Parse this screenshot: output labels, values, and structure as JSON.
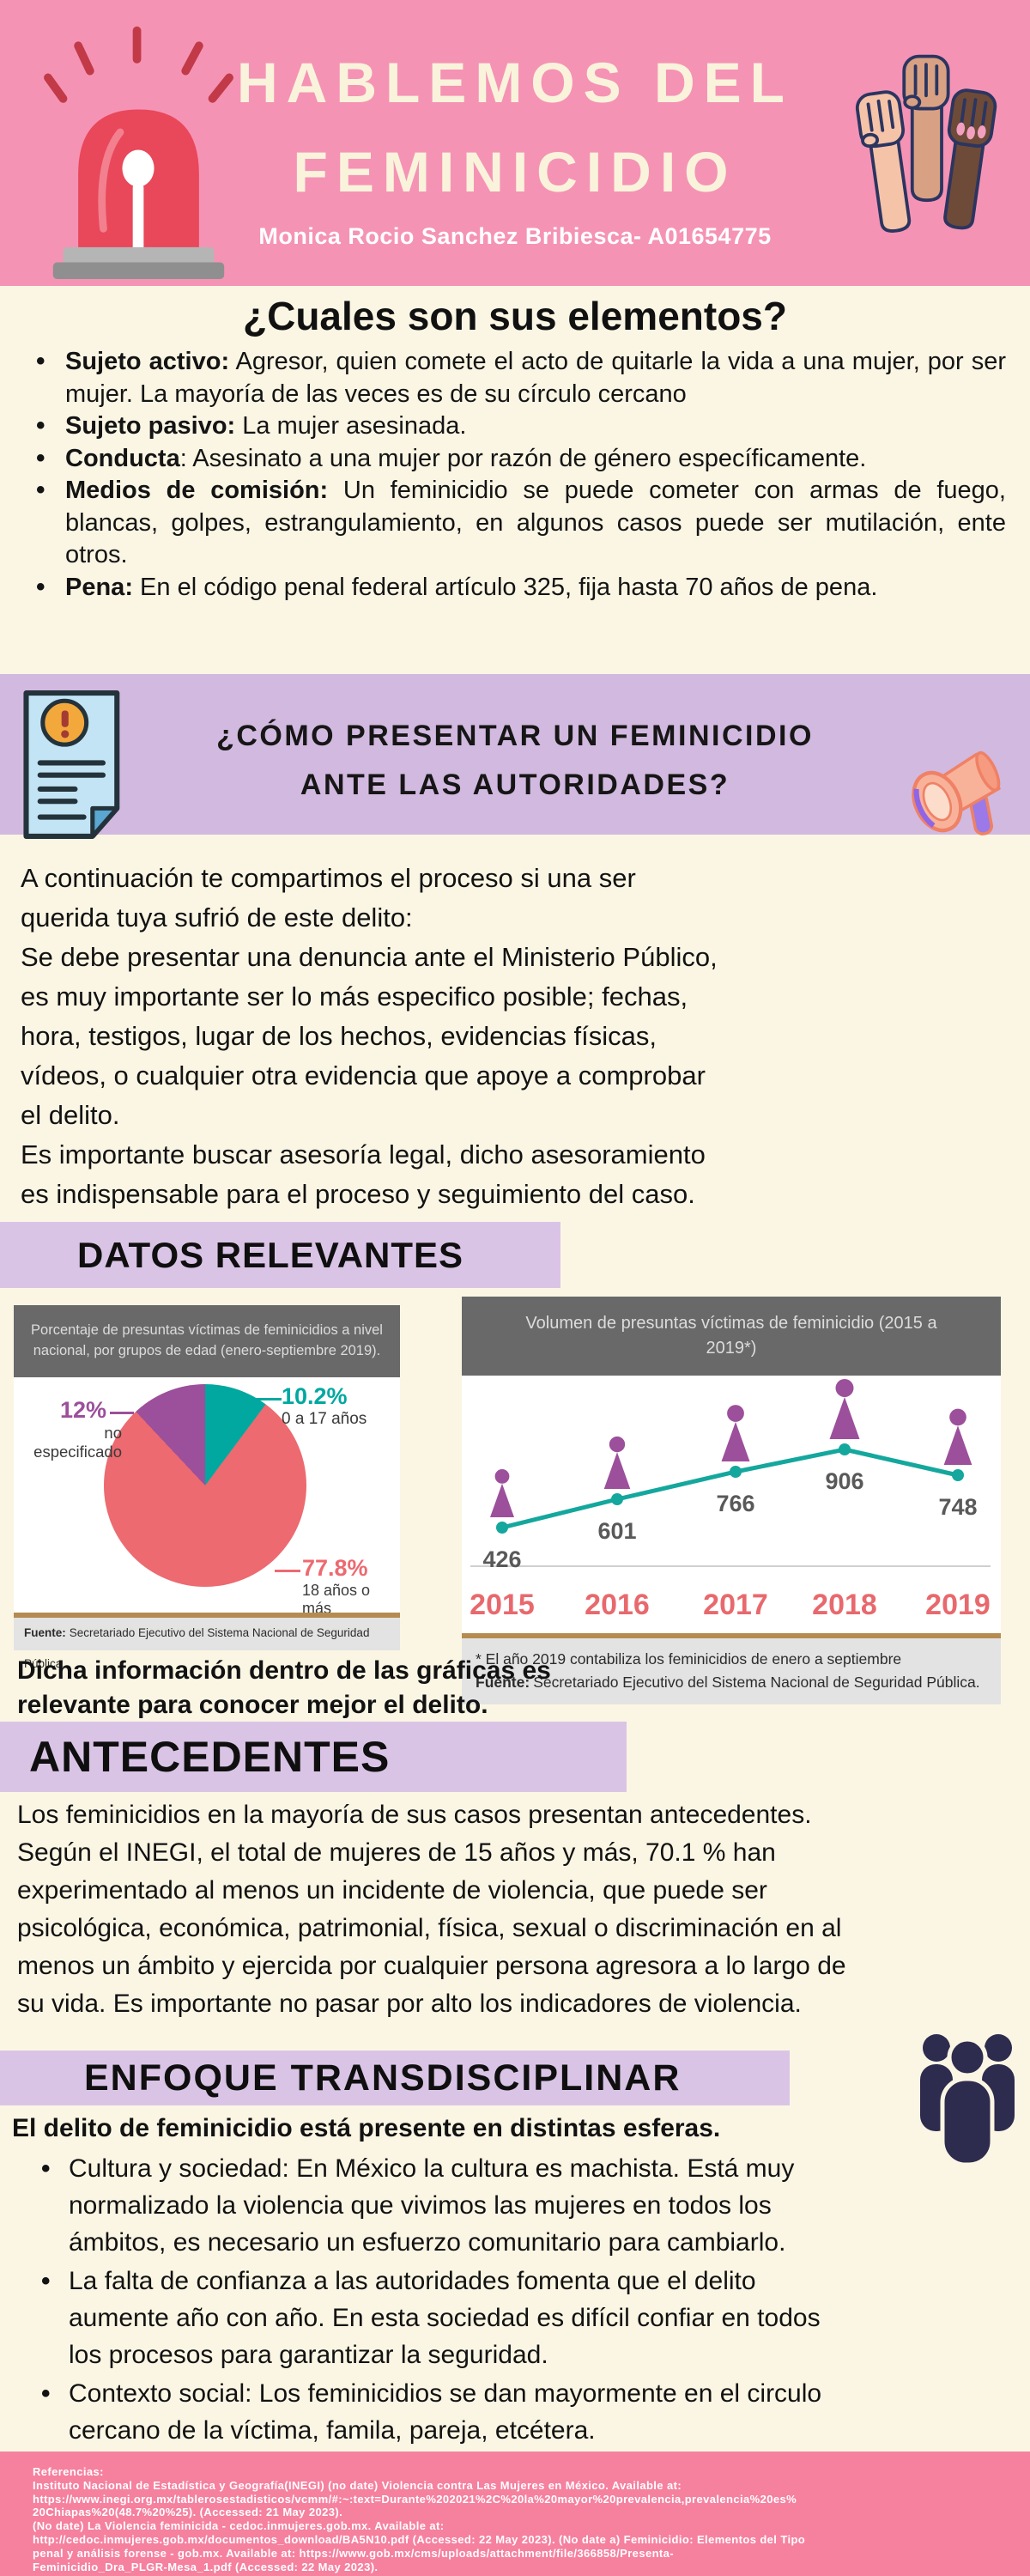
{
  "header": {
    "title_line1": "HABLEMOS DEL",
    "title_line2": "FEMINICIDIO",
    "author": "Monica Rocio Sanchez Bribiesca- A01654775"
  },
  "icons": {
    "header_left": "siren-icon",
    "header_right": "raised-fists-icon",
    "report_left": "document-alert-icon",
    "report_right": "megaphone-icon",
    "enfoque_right": "people-group-icon"
  },
  "palette": {
    "header_pink": "#f593b5",
    "footer_pink": "#f5819f",
    "lavender_band": "#d2b9e0",
    "lavender_strip": "#dac4e6",
    "cream": "#fbf6e4",
    "chart_header_gray": "#696969",
    "source_bar_gray": "#e3e3e3",
    "tan_rule": "#b58b51"
  },
  "elements_section": {
    "title": "¿Cuales son sus elementos?",
    "bullets": [
      {
        "label": "Sujeto activo:",
        "text": " Agresor, quien comete el acto de quitarle la vida a una mujer, por ser mujer. La mayoría de las veces es de su círculo cercano"
      },
      {
        "label": "Sujeto pasivo:",
        "text": " La mujer asesinada."
      },
      {
        "label": "Conducta",
        "text": ": Asesinato a una mujer por razón de género específicamente."
      },
      {
        "label": "Medios de comisión:",
        "text": " Un feminicidio se puede cometer con armas de fuego, blancas, golpes, estrangulamiento, en algunos casos puede ser mutilación, ente otros."
      },
      {
        "label": "Pena:",
        "text": " En el código penal federal artículo 325, fija hasta 70 años de pena."
      }
    ]
  },
  "report_section": {
    "title_line1": "¿CÓMO PRESENTAR UN FEMINICIDIO",
    "title_line2": "ANTE LAS AUTORIDADES?",
    "paragraph": "A continuación te compartimos el proceso si una ser\nquerida tuya sufrió de este delito:\nSe debe presentar una denuncia ante el Ministerio Público,\nes muy importante ser lo más especifico posible; fechas,\nhora, testigos,  lugar de los hechos, evidencias físicas,\nvídeos, o cualquier otra evidencia que apoye a comprobar\nel delito.\nEs importante buscar asesoría legal, dicho asesoramiento\nes indispensable para el proceso y seguimiento del caso."
  },
  "datos_relevantes": {
    "title": "DATOS RELEVANTES",
    "note": "Dicha información dentro de las gráficas es\nrelevante para conocer mejor el delito."
  },
  "chart_data": [
    {
      "type": "pie",
      "title": "Porcentaje de presuntas víctimas de feminicidios a nivel nacional, por grupos de edad (enero-septiembre 2019).",
      "slices": [
        {
          "label": "0 a 17 años",
          "value": 10.2,
          "display": "10.2%",
          "color": "#00a8a0"
        },
        {
          "label": "18 años o más",
          "value": 77.8,
          "display": "77.8%",
          "color": "#ec6a70"
        },
        {
          "label": "no especificado",
          "value": 12,
          "display": "12%",
          "color": "#9c4f9b"
        }
      ],
      "legend_position": "callouts",
      "source_label": "Fuente:",
      "source": "Secretariado Ejecutivo del Sistema Nacional de Seguridad Pública."
    },
    {
      "type": "line",
      "title": "Volumen de presuntas víctimas de feminicidio (2015 a 2019*)",
      "categories": [
        "2015",
        "2016",
        "2017",
        "2018",
        "2019"
      ],
      "values": [
        426,
        601,
        766,
        906,
        748
      ],
      "ylim": [
        400,
        950
      ],
      "grid": false,
      "line_color": "#14a79d",
      "marker_color": "#14a79d",
      "icon_color": "#9c4f9b",
      "value_label_color": "#595959",
      "year_label_color": "#e8696d",
      "footnote": "* El año 2019 contabiliza los feminicidios de enero a septiembre",
      "source_label": "Fuente:",
      "source": "Secretariado Ejecutivo del Sistema Nacional de Seguridad Pública."
    }
  ],
  "antecedentes": {
    "title": "ANTECEDENTES",
    "paragraph": "Los feminicidios en la mayoría de sus casos presentan antecedentes.\nSegún el INEGI, el total de mujeres de 15 años y más, 70.1 % han\nexperimentado al menos un incidente de violencia, que puede ser\npsicológica, económica, patrimonial, física, sexual o discriminación en al\nmenos un ámbito y ejercida por cualquier persona agresora a lo largo de\nsu vida. Es importante no pasar por alto los indicadores de violencia."
  },
  "enfoque": {
    "title": "ENFOQUE TRANSDISCIPLINAR",
    "intro": "El delito de feminicidio está presente en distintas esferas.",
    "bullets": [
      "Cultura y sociedad: En México la cultura es machista. Está muy\nnormalizado la violencia que vivimos las mujeres en todos los\námbitos, es necesario un esfuerzo comunitario para cambiarlo.",
      "La falta de confianza a las autoridades fomenta que el delito\naumente año con año. En esta sociedad es difícil confiar en todos\nlos procesos para garantizar la seguridad.",
      "Contexto social: Los feminicidios se dan mayormente en el circulo\ncercano de la víctima, famila, pareja, etcétera."
    ]
  },
  "footer": {
    "text": "Referencias:\nInstituto Nacional de Estadística y Geografía(INEGI) (no date) Violencia contra Las Mujeres en México. Available at:\nhttps://www.inegi.org.mx/tablerosestadisticos/vcmm/#:~:text=Durante%202021%2C%20la%20mayor%20prevalencia,prevalencia%20es%\n20Chiapas%20(48.7%20%25). (Accessed: 21 May 2023).\n(No date) La Violencia feminicida - cedoc.inmujeres.gob.mx. Available at:\nhttp://cedoc.inmujeres.gob.mx/documentos_download/BA5N10.pdf (Accessed: 22 May 2023). (No date a) Feminicidio: Elementos del Tipo\npenal y análisis forense - gob.mx. Available at: https://www.gob.mx/cms/uploads/attachment/file/366858/Presenta-\nFeminicidio_Dra_PLGR-Mesa_1.pdf (Accessed: 22 May 2023)."
  }
}
